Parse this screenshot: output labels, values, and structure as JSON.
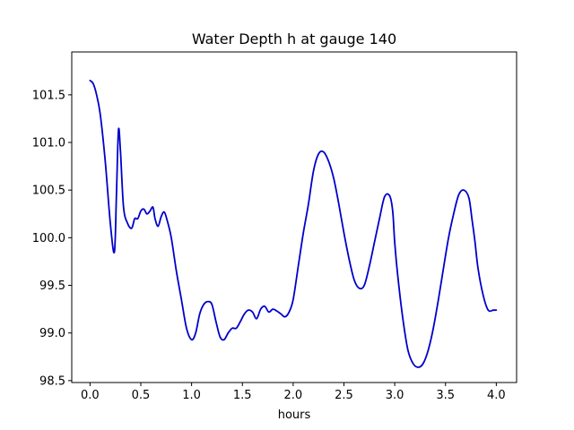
{
  "chart_data": {
    "type": "line",
    "title": "Water Depth h at gauge 140",
    "xlabel": "hours",
    "ylabel": "",
    "xlim": [
      -0.18,
      4.2
    ],
    "ylim": [
      98.48,
      101.95
    ],
    "xticks": [
      0.0,
      0.5,
      1.0,
      1.5,
      2.0,
      2.5,
      3.0,
      3.5,
      4.0
    ],
    "xtick_labels": [
      "0.0",
      "0.5",
      "1.0",
      "1.5",
      "2.0",
      "2.5",
      "3.0",
      "3.5",
      "4.0"
    ],
    "yticks": [
      98.5,
      99.0,
      99.5,
      100.0,
      100.5,
      101.0,
      101.5
    ],
    "ytick_labels": [
      "98.5",
      "99.0",
      "99.5",
      "100.0",
      "100.5",
      "101.0",
      "101.5"
    ],
    "grid": false,
    "series": [
      {
        "color": "#0000cc",
        "x": [
          0.0,
          0.03,
          0.06,
          0.1,
          0.15,
          0.2,
          0.24,
          0.26,
          0.28,
          0.3,
          0.33,
          0.37,
          0.41,
          0.44,
          0.47,
          0.5,
          0.53,
          0.56,
          0.59,
          0.62,
          0.64,
          0.67,
          0.7,
          0.73,
          0.76,
          0.8,
          0.85,
          0.9,
          0.95,
          1.0,
          1.04,
          1.08,
          1.12,
          1.16,
          1.2,
          1.24,
          1.28,
          1.32,
          1.36,
          1.4,
          1.44,
          1.48,
          1.52,
          1.56,
          1.6,
          1.64,
          1.68,
          1.72,
          1.76,
          1.8,
          1.84,
          1.88,
          1.92,
          1.96,
          2.0,
          2.05,
          2.1,
          2.15,
          2.2,
          2.25,
          2.3,
          2.35,
          2.4,
          2.45,
          2.5,
          2.55,
          2.6,
          2.65,
          2.7,
          2.75,
          2.8,
          2.85,
          2.9,
          2.95,
          2.98,
          3.0,
          3.03,
          3.08,
          3.13,
          3.18,
          3.23,
          3.28,
          3.33,
          3.38,
          3.43,
          3.48,
          3.53,
          3.58,
          3.63,
          3.68,
          3.73,
          3.76,
          3.79,
          3.82,
          3.87,
          3.92,
          3.97,
          4.0
        ],
        "y": [
          101.65,
          101.62,
          101.52,
          101.3,
          100.8,
          100.15,
          99.85,
          100.45,
          101.13,
          100.9,
          100.32,
          100.15,
          100.1,
          100.2,
          100.2,
          100.28,
          100.3,
          100.25,
          100.28,
          100.32,
          100.2,
          100.12,
          100.22,
          100.27,
          100.18,
          100.0,
          99.65,
          99.35,
          99.05,
          98.93,
          99.0,
          99.2,
          99.3,
          99.33,
          99.3,
          99.12,
          98.96,
          98.93,
          99.0,
          99.05,
          99.05,
          99.12,
          99.2,
          99.24,
          99.22,
          99.15,
          99.25,
          99.28,
          99.22,
          99.25,
          99.23,
          99.2,
          99.17,
          99.22,
          99.35,
          99.7,
          100.05,
          100.35,
          100.7,
          100.88,
          100.9,
          100.8,
          100.62,
          100.35,
          100.05,
          99.78,
          99.56,
          99.47,
          99.5,
          99.7,
          99.95,
          100.2,
          100.43,
          100.44,
          100.28,
          99.95,
          99.6,
          99.15,
          98.82,
          98.68,
          98.64,
          98.68,
          98.82,
          99.05,
          99.35,
          99.68,
          100.0,
          100.25,
          100.45,
          100.5,
          100.42,
          100.2,
          99.96,
          99.68,
          99.4,
          99.24,
          99.24,
          99.24
        ]
      }
    ]
  }
}
